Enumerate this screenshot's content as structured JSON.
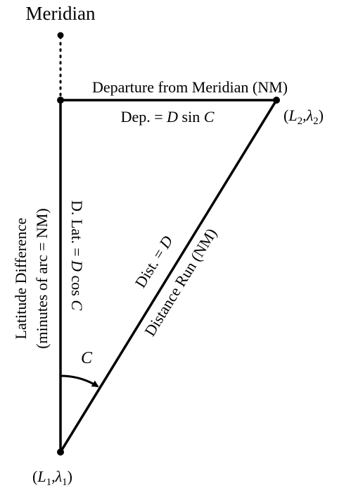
{
  "diagram": {
    "top_label": "Meridian",
    "departure_label": "Departure from Meridian (NM)",
    "dep_formula": {
      "prefix": "Dep. = ",
      "d": "D",
      "mid": " sin ",
      "c": "C"
    },
    "dlat_formula": {
      "prefix": "D. Lat. = ",
      "d": "D",
      "mid": " cos ",
      "c": "C"
    },
    "lat_diff_label_line1": "Latitude Difference",
    "lat_diff_label_line2": "(minutes of arc = NM)",
    "dist_formula": {
      "prefix": "Dist. = ",
      "d": "D"
    },
    "distance_run_label": "Distance Run (NM)",
    "angle_label": "C",
    "point_start": {
      "open": "(",
      "L": "L",
      "L_sub": "1",
      "comma": ",",
      "lam": "λ",
      "lam_sub": "1",
      "close": ")"
    },
    "point_end": {
      "open": "(",
      "L": "L",
      "L_sub": "2",
      "comma": ",",
      "lam": "λ",
      "lam_sub": "2",
      "close": ")"
    }
  }
}
